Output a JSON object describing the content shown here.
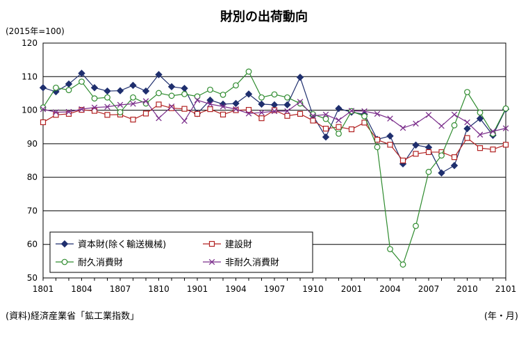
{
  "title": "財別の出荷動向",
  "unit_label": "(2015年=100)",
  "source_note": "(資料)経済産業省「鉱工業指数」",
  "x_unit_label": "(年・月)",
  "chart_data": {
    "type": "line",
    "title": "財別の出荷動向",
    "ylim": [
      50,
      120
    ],
    "yticks": [
      50,
      60,
      70,
      80,
      90,
      100,
      110,
      120
    ],
    "grid": true,
    "legend_position": "bottom-left",
    "x_count": 37,
    "xtick_labels": [
      {
        "index": 0,
        "label": "1801"
      },
      {
        "index": 3,
        "label": "1804"
      },
      {
        "index": 6,
        "label": "1807"
      },
      {
        "index": 9,
        "label": "1810"
      },
      {
        "index": 12,
        "label": "1901"
      },
      {
        "index": 15,
        "label": "1904"
      },
      {
        "index": 18,
        "label": "1907"
      },
      {
        "index": 21,
        "label": "1910"
      },
      {
        "index": 24,
        "label": "2001"
      },
      {
        "index": 27,
        "label": "2004"
      },
      {
        "index": 30,
        "label": "2007"
      },
      {
        "index": 33,
        "label": "2010"
      },
      {
        "index": 36,
        "label": "2101"
      }
    ],
    "series": [
      {
        "name": "資本財(除く輸送機械)",
        "color": "#1f2f6e",
        "marker": "diamond",
        "values": [
          106.7,
          105.5,
          107.8,
          111.0,
          106.7,
          105.7,
          105.8,
          107.4,
          105.7,
          110.6,
          107.0,
          106.5,
          99.0,
          103.0,
          101.8,
          102.0,
          104.8,
          101.8,
          101.6,
          101.6,
          109.8,
          98.4,
          92.0,
          100.5,
          99.4,
          98.8,
          91.3,
          92.3,
          84.0,
          89.6,
          88.9,
          81.3,
          83.5,
          94.5,
          97.5,
          92.5,
          100.3
        ]
      },
      {
        "name": "建設財",
        "color": "#b22222",
        "marker": "square",
        "values": [
          96.4,
          98.6,
          98.9,
          100.1,
          99.8,
          98.6,
          98.7,
          97.2,
          99.0,
          101.7,
          100.6,
          100.4,
          98.9,
          100.3,
          98.7,
          100.0,
          100.1,
          97.6,
          100.0,
          98.3,
          98.9,
          96.9,
          94.5,
          95.0,
          94.3,
          96.3,
          91.2,
          89.7,
          85.0,
          87.0,
          87.5,
          87.5,
          86.0,
          91.7,
          88.7,
          88.3,
          89.7
        ]
      },
      {
        "name": "耐久消費財",
        "color": "#2e8b2e",
        "marker": "circle",
        "values": [
          100.8,
          106.7,
          106.0,
          108.5,
          103.5,
          103.8,
          99.4,
          103.8,
          102.0,
          105.1,
          104.3,
          104.8,
          104.1,
          106.1,
          104.6,
          107.4,
          111.5,
          103.8,
          104.7,
          103.8,
          102.0,
          98.8,
          97.4,
          93.0,
          99.7,
          98.2,
          89.0,
          58.6,
          54.0,
          65.5,
          81.6,
          86.5,
          95.5,
          105.4,
          99.3,
          93.0,
          100.5
        ]
      },
      {
        "name": "非耐久消費財",
        "color": "#7b2e8b",
        "marker": "x",
        "values": [
          100.3,
          99.4,
          99.5,
          100.3,
          100.8,
          101.0,
          101.6,
          101.9,
          102.7,
          97.6,
          101.1,
          96.8,
          103.0,
          101.8,
          101.1,
          100.3,
          99.0,
          99.3,
          99.7,
          99.7,
          102.5,
          98.3,
          98.7,
          97.0,
          99.8,
          99.7,
          98.9,
          97.5,
          94.7,
          96.0,
          98.6,
          95.3,
          98.7,
          96.4,
          92.7,
          93.7,
          94.6
        ]
      }
    ]
  }
}
